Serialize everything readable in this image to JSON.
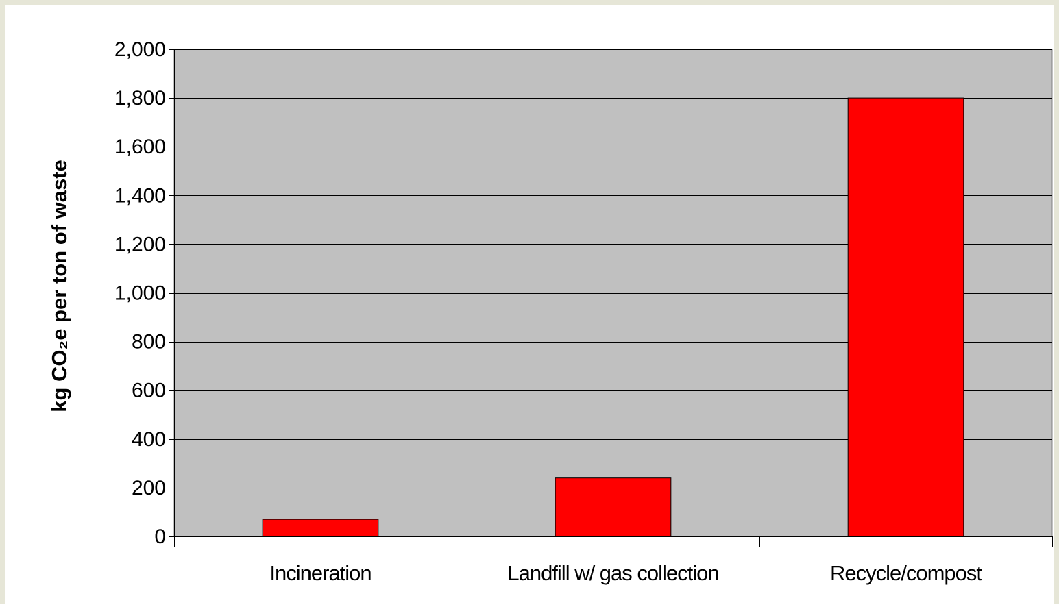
{
  "chart_data": {
    "type": "bar",
    "title": "",
    "xlabel": "",
    "ylabel": "kg CO₂e per ton of waste",
    "categories": [
      "Incineration",
      "Landfill w/ gas collection",
      "Recycle/compost"
    ],
    "values": [
      70,
      240,
      1800
    ],
    "ylim": [
      0,
      2000
    ],
    "yticks": [
      "0",
      "200",
      "400",
      "600",
      "800",
      "1,000",
      "1,200",
      "1,400",
      "1,600",
      "1,800",
      "2,000"
    ],
    "ytick_values": [
      0,
      200,
      400,
      600,
      800,
      1000,
      1200,
      1400,
      1600,
      1800,
      2000
    ],
    "grid": true,
    "legend": "none",
    "colors": {
      "bar": "#ff0000",
      "plot_background": "#c0c0c0",
      "grid": "#000000",
      "frame": "#e6e6d7"
    }
  }
}
